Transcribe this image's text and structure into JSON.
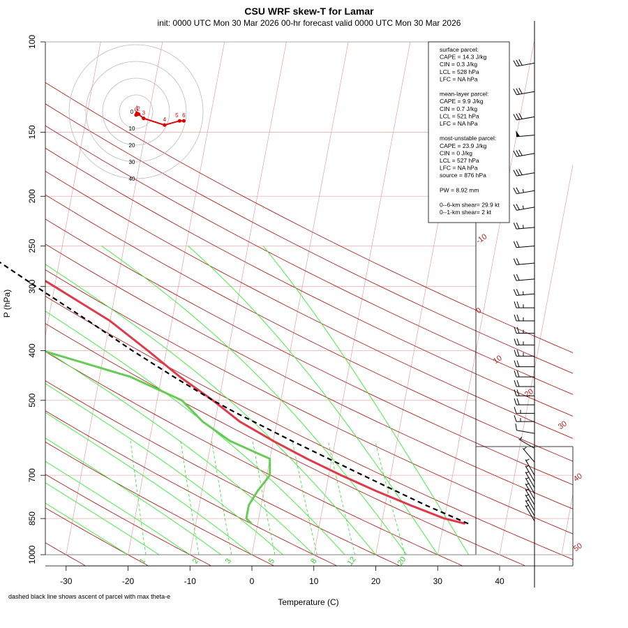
{
  "header": {
    "title": "CSU WRF skew-T for Lamar",
    "subtitle": "init: 0000 UTC Mon 30 Mar 2026     00-hr forecast valid 0000 UTC Mon 30 Mar 2026"
  },
  "footnote": "dashed black line shows ascent of parcel with max theta-e",
  "colors": {
    "temperature": "#e03a4a",
    "dewpoint": "#66cc55",
    "parcel": "#000000",
    "dry_adiabat": "#b22222",
    "moist_adiabat": "#33ee33",
    "mixing_ratio": "#33dd33",
    "isotherm": "#e8a0a0",
    "isobar": "#e8b0b0",
    "hodograph": "#e00000"
  },
  "stats": {
    "lines": [
      "surface parcel:",
      "CAPE = 14.3 J/kg",
      "CIN = 0.3 J/kg",
      "LCL = 528 hPa",
      "LFC = NA hPa",
      "",
      "mean-layer parcel:",
      "CAPE = 9.9 J/kg",
      "CIN = 0.7 J/kg",
      "LCL = 521 hPa",
      "LFC = NA hPa",
      "",
      "most-unstable parcel:",
      "CAPE = 23.9 J/kg",
      "CIN = 0 J/kg",
      "LCL = 527 hPa",
      "LFC = NA hPa",
      "source = 876 hPa",
      "",
      "PW =  8.92 mm",
      "",
      "0--6-km shear= 29.9 kt",
      "0--1-km shear= 2 kt"
    ]
  },
  "chart_data": {
    "type": "line",
    "title": "CSU WRF skew-T for Lamar",
    "xlabel": "Temperature (C)",
    "ylabel": "P (hPa)",
    "xlim": [
      -33,
      45
    ],
    "ylim": [
      1000,
      100
    ],
    "y_scale": "log",
    "x_ticks": [
      -30,
      -20,
      -10,
      0,
      10,
      20,
      30,
      40
    ],
    "y_ticks": [
      100,
      150,
      200,
      250,
      300,
      400,
      500,
      700,
      850,
      1000
    ],
    "dry_adiabat_labels": [
      "-10",
      "0",
      "10",
      "20",
      "30",
      "40",
      "50"
    ],
    "mixing_ratio_labels": [
      "1",
      "2",
      "3",
      "5",
      "8",
      "12",
      "20"
    ],
    "series": [
      {
        "key": "temperature",
        "p": [
          870,
          850,
          800,
          750,
          700,
          650,
          600,
          550,
          500,
          450,
          400,
          350,
          300,
          250,
          220,
          200,
          180,
          160,
          140,
          120,
          110
        ],
        "t": [
          33.5,
          30.0,
          24.0,
          18.0,
          12.0,
          6.0,
          0.0,
          -6.0,
          -11.0,
          -17.0,
          -23.0,
          -30.0,
          -40.0,
          -52.0,
          -59.0,
          -64.0,
          -65.0,
          -62.0,
          -58.0,
          -55.0,
          -54.0
        ]
      },
      {
        "key": "dewpoint",
        "p": [
          870,
          850,
          800,
          750,
          700,
          650,
          600,
          550,
          500,
          450,
          400,
          370,
          350,
          300,
          250,
          220,
          200,
          180
        ],
        "t": [
          -1.0,
          -2.0,
          -2.0,
          -1.0,
          0.5,
          0.0,
          -7.0,
          -12.0,
          -16.0,
          -25.0,
          -40.0,
          -46.0,
          -48.0,
          -51.0,
          -57.0,
          -62.0,
          -64.0,
          -66.0
        ]
      },
      {
        "key": "parcel",
        "p": [
          870,
          800,
          700,
          600,
          528,
          500,
          450,
          400,
          350,
          300,
          250,
          200,
          170,
          150,
          130,
          110
        ],
        "t": [
          34.0,
          26.5,
          15.5,
          3.0,
          -7.0,
          -11.0,
          -18.0,
          -25.5,
          -33.5,
          -43.0,
          -54.0,
          -66.0,
          -73.0,
          -79.0,
          -85.0,
          -92.0
        ]
      }
    ],
    "dry_adiabats_theta_C": [
      -70,
      -60,
      -50,
      -40,
      -30,
      -20,
      -10,
      0,
      10,
      20,
      30,
      40,
      50,
      60,
      70,
      80,
      90,
      100,
      110,
      120,
      130,
      140
    ],
    "moist_adiabats_Tw_C": [
      -20,
      -15,
      -10,
      -5,
      0,
      5,
      10,
      15,
      20,
      25,
      30,
      35
    ],
    "mixing_ratios_gkg": [
      1,
      2,
      3,
      5,
      8,
      12,
      20
    ],
    "wind_barbs": {
      "p": [
        110,
        125,
        140,
        152,
        165,
        180,
        195,
        210,
        230,
        250,
        270,
        290,
        310,
        330,
        350,
        370,
        390,
        410,
        430,
        450,
        470,
        490,
        510,
        530,
        550,
        580,
        620,
        660,
        700,
        720,
        740,
        760,
        780,
        800,
        820,
        840,
        860
      ],
      "speed_kt": [
        30,
        30,
        30,
        50,
        30,
        30,
        25,
        25,
        25,
        20,
        20,
        20,
        25,
        25,
        25,
        25,
        25,
        25,
        20,
        20,
        20,
        20,
        20,
        15,
        15,
        10,
        5,
        5,
        5,
        5,
        5,
        5,
        5,
        5,
        5,
        5,
        5
      ],
      "dir_deg": [
        260,
        260,
        260,
        265,
        260,
        260,
        260,
        260,
        265,
        265,
        265,
        265,
        265,
        270,
        270,
        270,
        270,
        270,
        270,
        270,
        270,
        270,
        270,
        270,
        270,
        280,
        300,
        320,
        330,
        330,
        330,
        330,
        330,
        330,
        330,
        330,
        330
      ]
    },
    "hodograph": {
      "ring_labels": [
        "0",
        "10",
        "20",
        "30",
        "40"
      ],
      "point_labels": [
        "0",
        "1",
        "2",
        "3",
        "4",
        "5",
        "6"
      ],
      "u": [
        0,
        0.5,
        1.5,
        4.5,
        17,
        26,
        28.5
      ],
      "v": [
        -2,
        -1,
        -1.5,
        -4,
        -8,
        -5.5,
        -5.5
      ]
    }
  }
}
